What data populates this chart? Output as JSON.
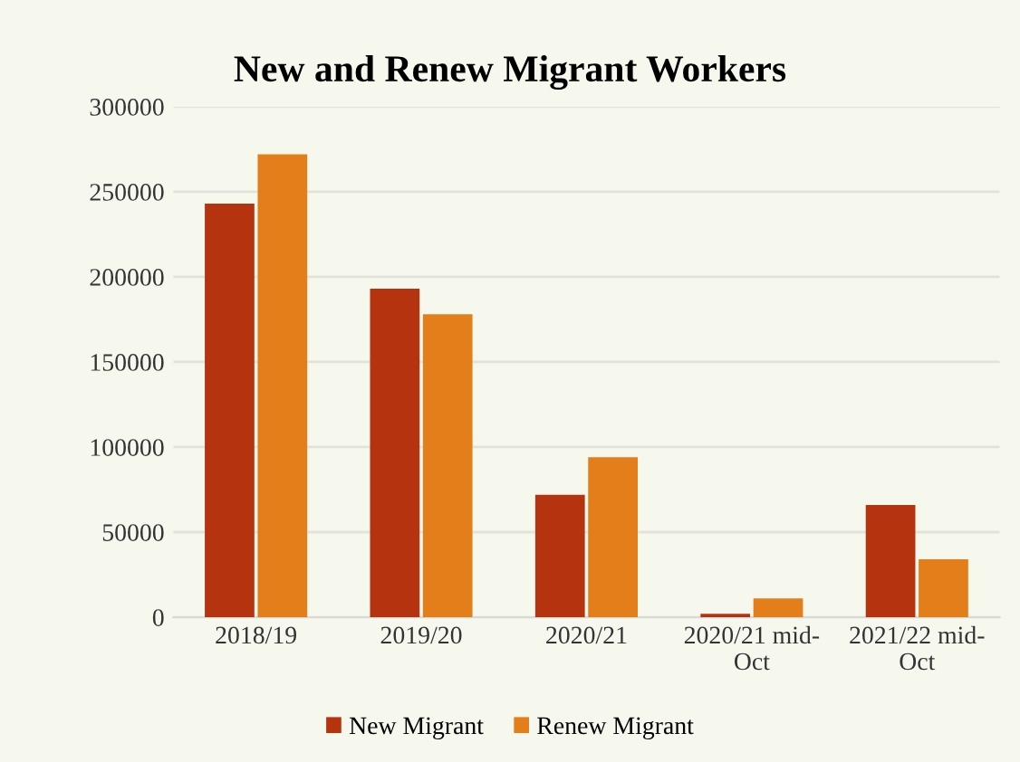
{
  "chart_data": {
    "type": "bar",
    "title": "New and Renew Migrant Workers",
    "categories": [
      "2018/19",
      "2019/20",
      "2020/21",
      "2020/21 mid-\nOct",
      "2021/22 mid-\nOct"
    ],
    "series": [
      {
        "name": "New Migrant",
        "color": "#b5340f",
        "values": [
          243000,
          193000,
          72000,
          2000,
          66000
        ]
      },
      {
        "name": "Renew Migrant",
        "color": "#e47e1a",
        "values": [
          272000,
          178000,
          94000,
          11000,
          34000
        ]
      }
    ],
    "ylim": [
      0,
      300000
    ],
    "yticks": [
      0,
      50000,
      100000,
      150000,
      200000,
      250000,
      300000
    ],
    "grid": "y",
    "legend": "bottom"
  }
}
